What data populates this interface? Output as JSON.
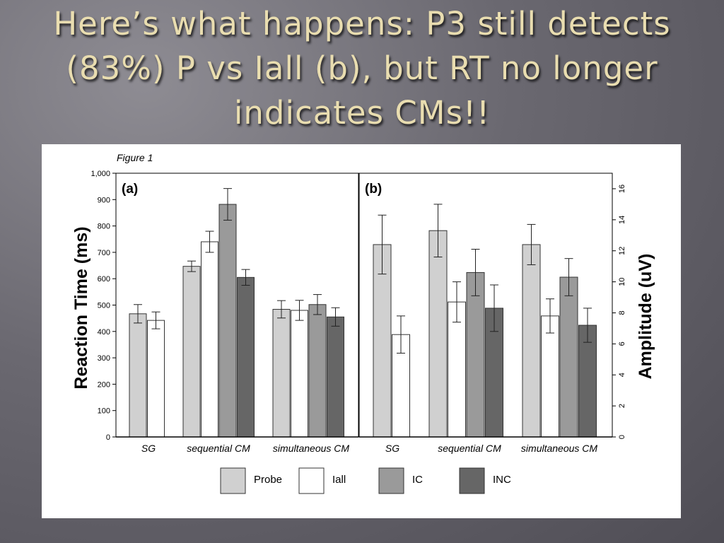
{
  "slide": {
    "title": "Here’s what happens: P3 still detects (83%) P vs Iall (b), but RT no longer indicates CMs!!"
  },
  "figure": {
    "caption": "Figure 1"
  },
  "colors": {
    "Probe": "#d0d0d0",
    "Iall": "#ffffff",
    "IC": "#9a9a9a",
    "INC": "#666666"
  },
  "legend": {
    "items": [
      {
        "label": "Probe",
        "color": "#d0d0d0"
      },
      {
        "label": "Iall",
        "color": "#ffffff"
      },
      {
        "label": "IC",
        "color": "#9a9a9a"
      },
      {
        "label": "INC",
        "color": "#666666"
      }
    ]
  },
  "chart_data": [
    {
      "type": "bar",
      "panel_label": "(a)",
      "title": "",
      "ylabel": "Reaction Time (ms)",
      "xlabel": "",
      "ylim": [
        0,
        1000
      ],
      "y_ticks": [
        "0",
        "100",
        "200",
        "300",
        "400",
        "500",
        "600",
        "700",
        "800",
        "900",
        "1,000"
      ],
      "categories": [
        "SG",
        "sequential CM",
        "simultaneous CM"
      ],
      "series": [
        {
          "name": "Probe",
          "values": [
            467,
            647,
            484
          ],
          "errors": [
            35,
            20,
            33
          ]
        },
        {
          "name": "Iall",
          "values": [
            442,
            740,
            480
          ],
          "errors": [
            32,
            40,
            38
          ]
        },
        {
          "name": "IC",
          "values": [
            null,
            882,
            502
          ],
          "errors": [
            null,
            60,
            38
          ]
        },
        {
          "name": "INC",
          "values": [
            null,
            605,
            455
          ],
          "errors": [
            null,
            30,
            35
          ]
        }
      ],
      "grid": false,
      "legend_position": "bottom"
    },
    {
      "type": "bar",
      "panel_label": "(b)",
      "title": "",
      "ylabel": "Amplitude (uV)",
      "xlabel": "",
      "ylim": [
        0,
        17
      ],
      "y_ticks": [
        "0",
        "2",
        "4",
        "6",
        "8",
        "10",
        "12",
        "14",
        "16"
      ],
      "categories": [
        "SG",
        "sequential CM",
        "simultaneous CM"
      ],
      "series": [
        {
          "name": "Probe",
          "values": [
            12.4,
            13.3,
            12.4
          ],
          "errors": [
            1.9,
            1.7,
            1.3
          ]
        },
        {
          "name": "Iall",
          "values": [
            6.6,
            8.7,
            7.8
          ],
          "errors": [
            1.2,
            1.3,
            1.1
          ]
        },
        {
          "name": "IC",
          "values": [
            null,
            10.6,
            10.3
          ],
          "errors": [
            null,
            1.5,
            1.2
          ]
        },
        {
          "name": "INC",
          "values": [
            null,
            8.3,
            7.2
          ],
          "errors": [
            null,
            1.5,
            1.1
          ]
        }
      ],
      "grid": false,
      "legend_position": "bottom"
    }
  ]
}
